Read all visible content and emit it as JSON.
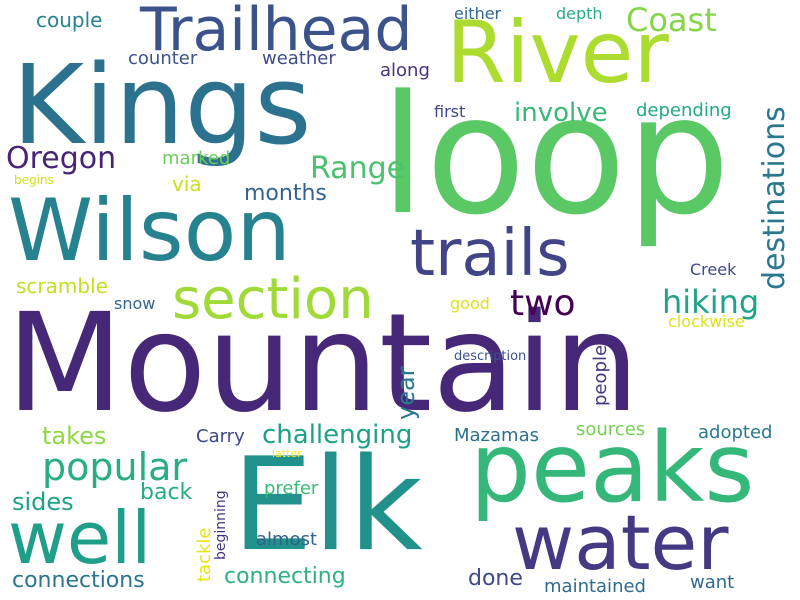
{
  "words": [
    {
      "text": "Mountain",
      "color": "#472878"
    },
    {
      "text": "loop",
      "color": "#5ac864"
    },
    {
      "text": "Kings",
      "color": "#2c728e"
    },
    {
      "text": "Elk",
      "color": "#21918c"
    },
    {
      "text": "Wilson",
      "color": "#26828e"
    },
    {
      "text": "River",
      "color": "#addc30"
    },
    {
      "text": "peaks",
      "color": "#35b779"
    },
    {
      "text": "water",
      "color": "#443983"
    },
    {
      "text": "Trailhead",
      "color": "#3b528b"
    },
    {
      "text": "trails",
      "color": "#414487"
    },
    {
      "text": "well",
      "color": "#1f9e89"
    },
    {
      "text": "section",
      "color": "#a0da39"
    },
    {
      "text": "popular",
      "color": "#28ae80"
    },
    {
      "text": "two",
      "color": "#440154"
    },
    {
      "text": "hiking",
      "color": "#20a386"
    },
    {
      "text": "destinations",
      "color": "#2a788e"
    },
    {
      "text": "Coast",
      "color": "#86d549"
    },
    {
      "text": "Oregon",
      "color": "#482475"
    },
    {
      "text": "Range",
      "color": "#4ac16d"
    },
    {
      "text": "involve",
      "color": "#38b977"
    },
    {
      "text": "challenging",
      "color": "#1fa187"
    },
    {
      "text": "connecting",
      "color": "#2db27d"
    },
    {
      "text": "connections",
      "color": "#2a768e"
    },
    {
      "text": "months",
      "color": "#33638d"
    },
    {
      "text": "takes",
      "color": "#8fd744"
    },
    {
      "text": "sides",
      "color": "#1fa188"
    },
    {
      "text": "back",
      "color": "#25ac82"
    },
    {
      "text": "done",
      "color": "#3e4a89"
    },
    {
      "text": "scramble",
      "color": "#c2df23"
    },
    {
      "text": "year",
      "color": "#2a788e"
    },
    {
      "text": "couple",
      "color": "#26828e"
    },
    {
      "text": "counter",
      "color": "#3b528b"
    },
    {
      "text": "weather",
      "color": "#3e4c8a"
    },
    {
      "text": "depth",
      "color": "#29af7f"
    },
    {
      "text": "either",
      "color": "#31688e"
    },
    {
      "text": "along",
      "color": "#46337f"
    },
    {
      "text": "first",
      "color": "#3f4889"
    },
    {
      "text": "depending",
      "color": "#23a983"
    },
    {
      "text": "marked",
      "color": "#6ccd5a"
    },
    {
      "text": "via",
      "color": "#c8e020"
    },
    {
      "text": "begins",
      "color": "#d2e21b"
    },
    {
      "text": "snow",
      "color": "#32648e"
    },
    {
      "text": "good",
      "color": "#dfe318"
    },
    {
      "text": "Creek",
      "color": "#3e4a89"
    },
    {
      "text": "clockwise",
      "color": "#dde318"
    },
    {
      "text": "people",
      "color": "#453781"
    },
    {
      "text": "description",
      "color": "#3b528b"
    },
    {
      "text": "Carry",
      "color": "#3f4788"
    },
    {
      "text": "Mazamas",
      "color": "#2d708e"
    },
    {
      "text": "sources",
      "color": "#75d054"
    },
    {
      "text": "adopted",
      "color": "#2a788e"
    },
    {
      "text": "latter",
      "color": "#fde725"
    },
    {
      "text": "prefer",
      "color": "#3bbb75"
    },
    {
      "text": "tackle",
      "color": "#e7e419"
    },
    {
      "text": "beginning",
      "color": "#46327e"
    },
    {
      "text": "almost",
      "color": "#34618d"
    },
    {
      "text": "maintained",
      "color": "#2f6b8e"
    },
    {
      "text": "want",
      "color": "#31688e"
    }
  ]
}
